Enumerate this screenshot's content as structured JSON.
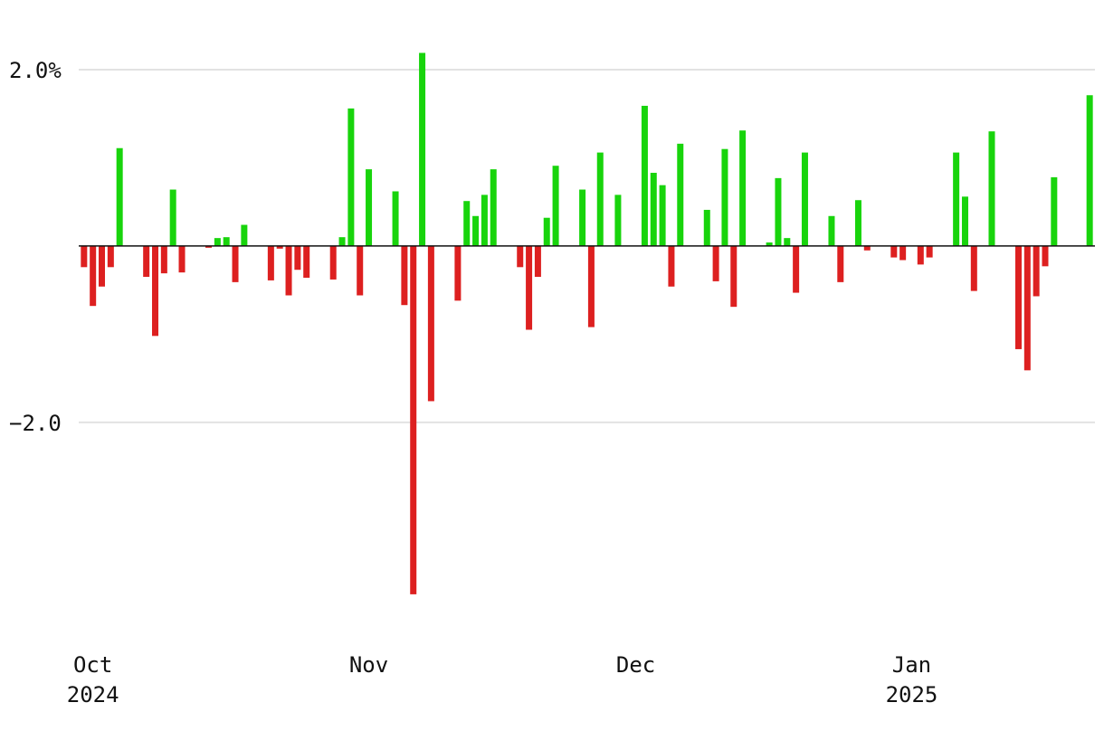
{
  "chart_data": {
    "type": "bar",
    "x": [
      "2024-09-30",
      "2024-10-01",
      "2024-10-02",
      "2024-10-03",
      "2024-10-04",
      "2024-10-07",
      "2024-10-08",
      "2024-10-09",
      "2024-10-10",
      "2024-10-11",
      "2024-10-14",
      "2024-10-15",
      "2024-10-16",
      "2024-10-17",
      "2024-10-18",
      "2024-10-21",
      "2024-10-22",
      "2024-10-23",
      "2024-10-24",
      "2024-10-25",
      "2024-10-28",
      "2024-10-29",
      "2024-10-30",
      "2024-10-31",
      "2024-11-01",
      "2024-11-04",
      "2024-11-05",
      "2024-11-06",
      "2024-11-07",
      "2024-11-08",
      "2024-11-11",
      "2024-11-12",
      "2024-11-13",
      "2024-11-14",
      "2024-11-15",
      "2024-11-18",
      "2024-11-19",
      "2024-11-20",
      "2024-11-21",
      "2024-11-22",
      "2024-11-25",
      "2024-11-26",
      "2024-11-27",
      "2024-11-29",
      "2024-12-02",
      "2024-12-03",
      "2024-12-04",
      "2024-12-05",
      "2024-12-06",
      "2024-12-09",
      "2024-12-10",
      "2024-12-11",
      "2024-12-12",
      "2024-12-13",
      "2024-12-16",
      "2024-12-17",
      "2024-12-18",
      "2024-12-19",
      "2024-12-20",
      "2024-12-23",
      "2024-12-24",
      "2024-12-26",
      "2024-12-27",
      "2024-12-30",
      "2024-12-31",
      "2025-01-02",
      "2025-01-03",
      "2025-01-06",
      "2025-01-07",
      "2025-01-08",
      "2025-01-10",
      "2025-01-13",
      "2025-01-14",
      "2025-01-15",
      "2025-01-16",
      "2025-01-17",
      "2025-01-21"
    ],
    "series": [
      {
        "values": [
          -0.24,
          -0.68,
          -0.46,
          -0.24,
          1.11,
          -0.35,
          -1.02,
          -0.31,
          0.64,
          -0.3,
          -0.02,
          0.09,
          0.1,
          -0.41,
          0.24,
          -0.39,
          -0.03,
          -0.56,
          -0.27,
          -0.36,
          -0.38,
          0.1,
          1.56,
          -0.56,
          0.87,
          0.62,
          -0.67,
          -3.95,
          2.19,
          -1.76,
          -0.62,
          0.51,
          0.34,
          0.58,
          0.87,
          -0.24,
          -0.95,
          -0.35,
          0.32,
          0.91,
          0.64,
          -0.92,
          1.06,
          0.58,
          1.59,
          0.83,
          0.69,
          -0.46,
          1.16,
          0.41,
          -0.4,
          1.1,
          -0.69,
          1.31,
          0.04,
          0.77,
          0.09,
          -0.53,
          1.06,
          0.34,
          -0.41,
          0.52,
          -0.05,
          -0.13,
          -0.16,
          -0.21,
          -0.13,
          1.06,
          0.56,
          -0.51,
          1.3,
          -1.17,
          -1.41,
          -0.57,
          -0.23,
          0.78,
          1.71
        ]
      }
    ],
    "up_color": "#18d40c",
    "down_color": "#dd2020",
    "xlim": [
      "2024-09-29",
      "2025-01-22"
    ],
    "xticks": [
      {
        "value": "2024-10-01",
        "label": "Oct",
        "year": "2024"
      },
      {
        "value": "2024-11-01",
        "label": "Nov"
      },
      {
        "value": "2024-12-01",
        "label": "Dec"
      },
      {
        "value": "2025-01-01",
        "label": "Jan",
        "year": "2025"
      }
    ],
    "ylim": [
      -4.3,
      2.4
    ],
    "yticks": [
      {
        "value": 2,
        "label": "2.0%"
      },
      {
        "value": -2,
        "label": "−2.0"
      }
    ],
    "grid": true
  }
}
